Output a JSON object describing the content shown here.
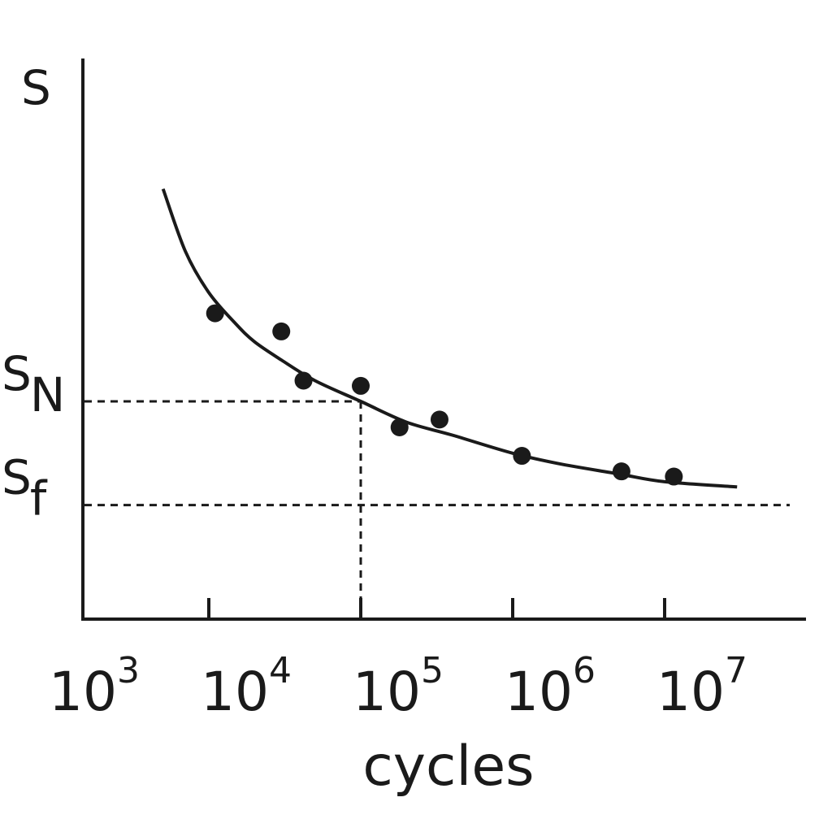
{
  "chart_data": {
    "type": "scatter",
    "title": "",
    "ylabel": "S",
    "xlabel": "cycles",
    "x_scale": "log",
    "xlim": [
      1000,
      100000000
    ],
    "ylim": [
      0,
      100
    ],
    "grid": false,
    "x_ticks": [
      {
        "value": 1000,
        "base": "10",
        "exp": "3"
      },
      {
        "value": 10000,
        "base": "10",
        "exp": "4"
      },
      {
        "value": 100000,
        "base": "10",
        "exp": "5"
      },
      {
        "value": 1000000,
        "base": "10",
        "exp": "6"
      },
      {
        "value": 10000000,
        "base": "10",
        "exp": "7"
      }
    ],
    "x_tick_marks": [
      10000,
      100000,
      1000000,
      10000000
    ],
    "reference_lines": [
      {
        "label_main": "S",
        "label_sub": "N",
        "y": 42,
        "x_drop": 100000
      },
      {
        "label_main": "S",
        "label_sub": "f",
        "y": 22
      }
    ],
    "points": [
      {
        "x": 11000,
        "y": 59
      },
      {
        "x": 30000,
        "y": 55.5
      },
      {
        "x": 42000,
        "y": 46
      },
      {
        "x": 100000,
        "y": 45
      },
      {
        "x": 180000,
        "y": 37
      },
      {
        "x": 330000,
        "y": 38.5
      },
      {
        "x": 1150000,
        "y": 31.5
      },
      {
        "x": 5200000,
        "y": 28.5
      },
      {
        "x": 11500000,
        "y": 27.5
      }
    ],
    "fit_curve": {
      "x": [
        5000,
        7000,
        10000,
        15000,
        20000,
        30000,
        50000,
        100000,
        200000,
        400000,
        1000000,
        2000000,
        5000000,
        10000000,
        30000000
      ],
      "y": [
        83,
        71,
        63,
        57,
        53.5,
        50,
        46,
        42,
        38,
        35.5,
        32,
        30,
        28,
        26.5,
        25.5
      ]
    }
  }
}
